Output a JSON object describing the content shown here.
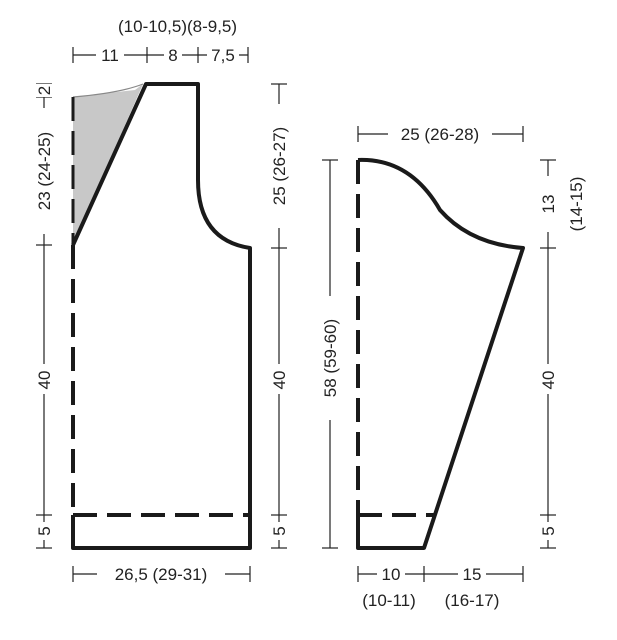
{
  "body_piece": {
    "top_widths": {
      "heading": "(10-10,5)(8-9,5)",
      "left": "11",
      "middle": "8",
      "right": "7,5"
    },
    "left_heights": {
      "top": "2",
      "shoulder": "23 (24-25)",
      "body": "40",
      "rib": "5"
    },
    "right_heights": {
      "armhole": "25 (26-27)",
      "body": "40",
      "rib": "5"
    },
    "bottom_width": "26,5 (29-31)",
    "shaded_colour": "#c8c8c8"
  },
  "sleeve_piece": {
    "top_width": "25 (26-28)",
    "full_length": "58 (59-60)",
    "right_heights": {
      "cap_line1": "13",
      "cap_line2": "(14-15)",
      "body": "40",
      "rib": "5"
    },
    "bottom_left_line1": "10",
    "bottom_left_line2": "(10-11)",
    "bottom_right_line1": "15",
    "bottom_right_line2": "(16-17)"
  }
}
